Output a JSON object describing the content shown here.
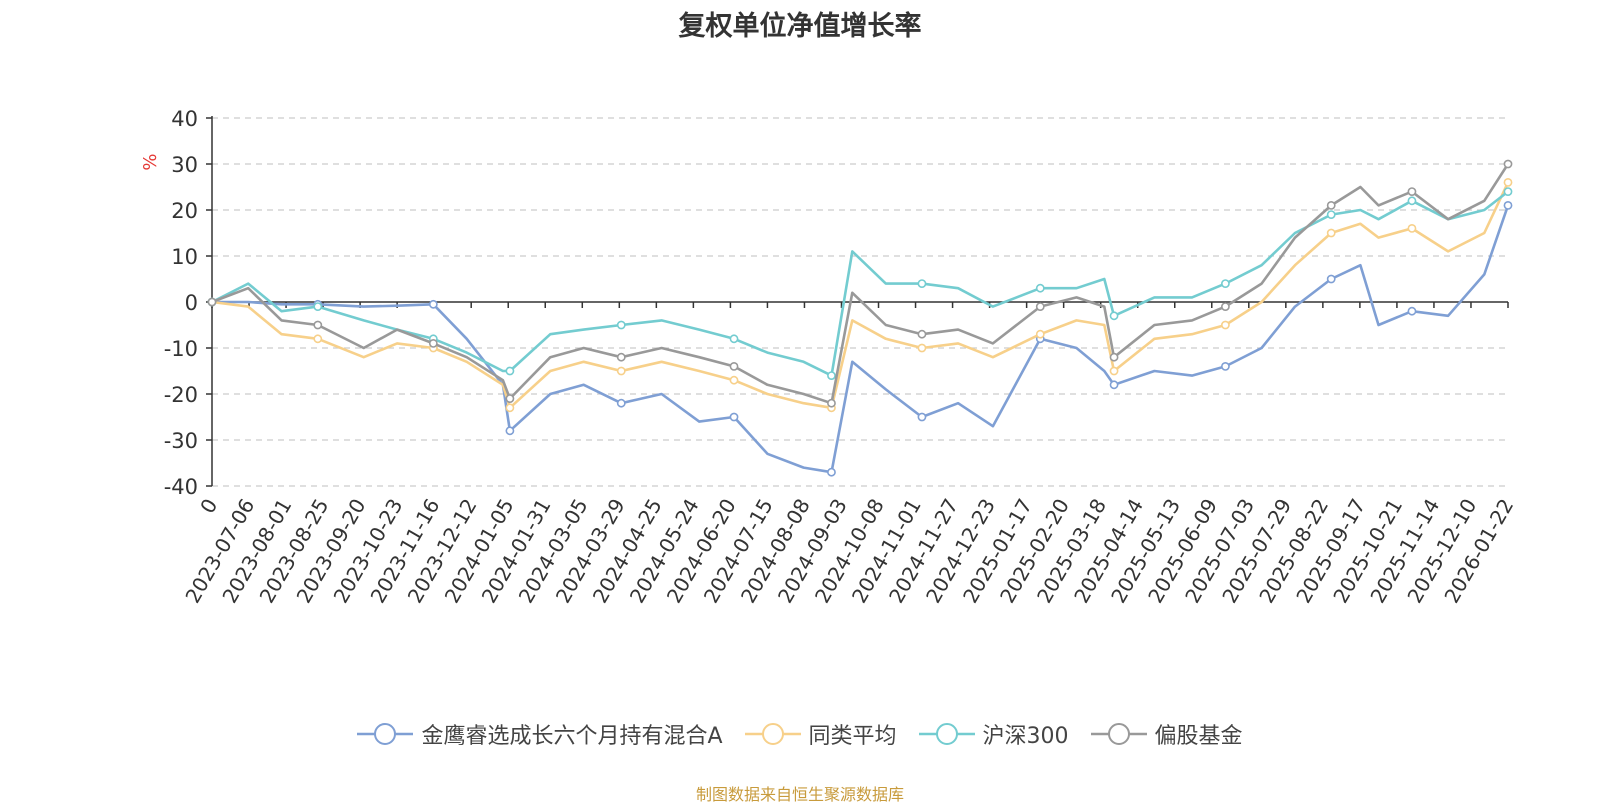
{
  "chart_data": {
    "type": "line",
    "title": "复权单位净值增长率",
    "ylabel": "%",
    "ylim": [
      -40,
      40
    ],
    "yticks": [
      40,
      30,
      20,
      10,
      0,
      -10,
      -20,
      -30,
      -40
    ],
    "grid": true,
    "legend_position": "bottom",
    "x_ticks": [
      "0",
      "2023-07-06",
      "2023-08-01",
      "2023-08-25",
      "2023-09-20",
      "2023-10-23",
      "2023-11-16",
      "2023-12-12",
      "2024-01-05",
      "2024-01-31",
      "2024-03-05",
      "2024-03-29",
      "2024-04-25",
      "2024-05-24",
      "2024-06-20",
      "2024-07-15",
      "2024-08-08",
      "2024-09-03",
      "2024-10-08",
      "2024-11-01",
      "2024-11-27",
      "2024-12-23",
      "2025-01-17",
      "2025-02-20",
      "2025-03-18",
      "2025-04-14",
      "2025-05-13",
      "2025-06-09",
      "2025-07-03",
      "2025-07-29",
      "2025-08-22",
      "2025-09-17",
      "2025-10-21",
      "2025-11-14",
      "2025-12-10",
      "2026-01-22"
    ],
    "x": [
      "2023-07-06",
      "2023-08-01",
      "2023-08-25",
      "2023-09-20",
      "2023-10-23",
      "2023-11-16",
      "2023-12-12",
      "2024-01-05",
      "2024-01-31",
      "2024-02-05",
      "2024-03-05",
      "2024-03-29",
      "2024-04-25",
      "2024-05-24",
      "2024-06-20",
      "2024-07-15",
      "2024-08-08",
      "2024-09-03",
      "2024-09-23",
      "2024-10-08",
      "2024-11-01",
      "2024-11-27",
      "2024-12-23",
      "2025-01-17",
      "2025-02-20",
      "2025-03-18",
      "2025-04-07",
      "2025-04-14",
      "2025-05-13",
      "2025-06-09",
      "2025-07-03",
      "2025-07-29",
      "2025-08-22",
      "2025-09-17",
      "2025-10-08",
      "2025-10-21",
      "2025-11-14",
      "2025-12-10",
      "2026-01-05",
      "2026-01-22"
    ],
    "series": [
      {
        "name": "金鹰睿选成长六个月持有混合A",
        "color": "#7f9fd4",
        "values": [
          0,
          0,
          -0.5,
          -0.5,
          -1,
          -0.8,
          -0.5,
          -8,
          -18,
          -28,
          -20,
          -18,
          -22,
          -20,
          -26,
          -25,
          -33,
          -36,
          -37,
          -13,
          -19,
          -25,
          -22,
          -27,
          -8,
          -10,
          -15,
          -18,
          -15,
          -16,
          -14,
          -10,
          -1,
          5,
          8,
          -5,
          -2,
          -3,
          6,
          21
        ]
      },
      {
        "name": "同类平均",
        "color": "#f7d08a",
        "values": [
          0,
          -1,
          -7,
          -8,
          -12,
          -9,
          -10,
          -13,
          -18,
          -23,
          -15,
          -13,
          -15,
          -13,
          -15,
          -17,
          -20,
          -22,
          -23,
          -4,
          -8,
          -10,
          -9,
          -12,
          -7,
          -4,
          -5,
          -15,
          -8,
          -7,
          -5,
          0,
          8,
          15,
          17,
          14,
          16,
          11,
          15,
          26
        ]
      },
      {
        "name": "沪深300",
        "color": "#73ccd0",
        "values": [
          0,
          4,
          -2,
          -1,
          -4,
          -6,
          -8,
          -11,
          -15,
          -15,
          -7,
          -6,
          -5,
          -4,
          -6,
          -8,
          -11,
          -13,
          -16,
          11,
          4,
          4,
          3,
          -1,
          3,
          3,
          5,
          -3,
          1,
          1,
          4,
          8,
          15,
          19,
          20,
          18,
          22,
          18,
          20,
          24
        ]
      },
      {
        "name": "偏股基金",
        "color": "#999999",
        "values": [
          0,
          3,
          -4,
          -5,
          -10,
          -6,
          -9,
          -12,
          -17,
          -21,
          -12,
          -10,
          -12,
          -10,
          -12,
          -14,
          -18,
          -20,
          -22,
          2,
          -5,
          -7,
          -6,
          -9,
          -1,
          1,
          -1,
          -12,
          -5,
          -4,
          -1,
          4,
          14,
          21,
          25,
          21,
          24,
          18,
          22,
          30
        ]
      }
    ]
  },
  "source_note": "制图数据来自恒生聚源数据库"
}
